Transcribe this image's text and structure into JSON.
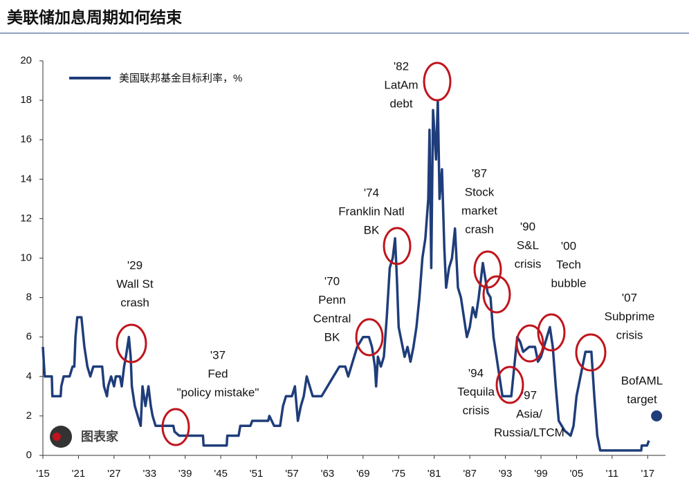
{
  "chart_data": {
    "type": "line",
    "title": "美联储加息周期如何结束",
    "watermark": "图表家",
    "xlim": [
      1915,
      2020
    ],
    "ylim": [
      0,
      20
    ],
    "yticks": [
      0,
      2,
      4,
      6,
      8,
      10,
      12,
      14,
      16,
      18,
      20
    ],
    "xticks": [
      {
        "value": 1915,
        "label": "'15"
      },
      {
        "value": 1921,
        "label": "'21"
      },
      {
        "value": 1927,
        "label": "'27"
      },
      {
        "value": 1933,
        "label": "'33"
      },
      {
        "value": 1939,
        "label": "'39"
      },
      {
        "value": 1945,
        "label": "'45"
      },
      {
        "value": 1951,
        "label": "'51"
      },
      {
        "value": 1957,
        "label": "'57"
      },
      {
        "value": 1963,
        "label": "'63"
      },
      {
        "value": 1969,
        "label": "'69"
      },
      {
        "value": 1975,
        "label": "'75"
      },
      {
        "value": 1981,
        "label": "'81"
      },
      {
        "value": 1987,
        "label": "'87"
      },
      {
        "value": 1993,
        "label": "'93"
      },
      {
        "value": 1999,
        "label": "'99"
      },
      {
        "value": 2005,
        "label": "'05"
      },
      {
        "value": 2011,
        "label": "'11"
      },
      {
        "value": 2017,
        "label": "'17"
      }
    ],
    "legend": "upper left",
    "series": [
      {
        "name": "美国联邦基金目标利率，%",
        "color": "#1f3d7a",
        "x": [
          1915,
          1915.3,
          1916.5,
          1916.6,
          1918,
          1918.1,
          1918.5,
          1919.5,
          1920,
          1920.3,
          1920.5,
          1920.8,
          1921.5,
          1922,
          1922.5,
          1923,
          1923.5,
          1925,
          1925.3,
          1925.8,
          1926,
          1926.5,
          1927,
          1927.3,
          1928,
          1928.3,
          1928.7,
          1929,
          1929.5,
          1929.8,
          1930,
          1930.5,
          1931,
          1931.5,
          1931.8,
          1932.3,
          1932.8,
          1933.2,
          1933.5,
          1934,
          1937,
          1937.2,
          1938,
          1942,
          1942.1,
          1946,
          1946.1,
          1948,
          1948.3,
          1950,
          1950.3,
          1953,
          1953.2,
          1954,
          1955,
          1955.5,
          1956,
          1957,
          1957.5,
          1958,
          1958.5,
          1959,
          1959.5,
          1960,
          1960.5,
          1962,
          1963,
          1964,
          1965,
          1966,
          1966.5,
          1967,
          1968,
          1969,
          1970,
          1970.5,
          1971,
          1971.2,
          1971.5,
          1972,
          1972.5,
          1973,
          1973.5,
          1974,
          1974.4,
          1974.7,
          1975,
          1976,
          1976.5,
          1977,
          1977.5,
          1978,
          1978.5,
          1979,
          1979.5,
          1980,
          1980.2,
          1980.5,
          1980.8,
          1981.3,
          1981.6,
          1981.9,
          1982.3,
          1982.7,
          1983,
          1983.5,
          1984,
          1984.5,
          1985,
          1985.5,
          1986,
          1986.5,
          1987,
          1987.5,
          1988,
          1988.5,
          1989.2,
          1989.6,
          1990,
          1990.5,
          1991,
          1991.5,
          1992,
          1992.5,
          1993,
          1994,
          1994.5,
          1995,
          1995.5,
          1996,
          1997,
          1998,
          1998.5,
          1999,
          1999.5,
          2000,
          2000.5,
          2001,
          2001.5,
          2002,
          2003,
          2004,
          2004.5,
          2005,
          2006,
          2006.5,
          2007.5,
          2008,
          2008.5,
          2009,
          2015.9,
          2016,
          2016.9,
          2017.2
        ],
        "values": [
          5.5,
          4,
          4,
          3,
          3,
          3.5,
          4,
          4,
          4.5,
          4.5,
          6,
          7,
          7,
          5.5,
          4.5,
          4,
          4.5,
          4.5,
          3.5,
          3,
          3.5,
          4,
          3.5,
          4,
          4,
          3.5,
          4.5,
          5,
          6,
          5,
          3.5,
          2.5,
          2,
          1.5,
          3.5,
          2.5,
          3.5,
          2.5,
          2,
          1.5,
          1.5,
          1.2,
          1,
          1,
          0.5,
          0.5,
          1,
          1,
          1.5,
          1.5,
          1.75,
          1.75,
          2,
          1.5,
          1.5,
          2.5,
          3,
          3,
          3.5,
          1.75,
          2.5,
          3,
          4,
          3.5,
          3,
          3,
          3.5,
          4,
          4.5,
          4.5,
          4,
          4.5,
          5.5,
          6,
          6,
          5.5,
          4.5,
          3.5,
          5,
          4.5,
          5,
          7,
          9.5,
          10,
          11,
          9,
          6.5,
          5,
          5.5,
          4.75,
          5.5,
          6.5,
          8,
          10,
          11,
          13,
          16.5,
          9.5,
          17.5,
          15,
          18,
          13,
          14.5,
          10.5,
          8.5,
          9.5,
          10,
          11.5,
          8.5,
          8,
          7,
          6,
          6.5,
          7.5,
          7,
          8,
          9.75,
          9,
          8.25,
          8,
          6,
          5,
          4,
          3,
          3,
          3,
          4.5,
          6,
          5.75,
          5.25,
          5.5,
          5.5,
          4.75,
          5,
          5.5,
          6,
          6.5,
          5.5,
          3.5,
          1.75,
          1.25,
          1,
          1.5,
          3,
          4.5,
          5.25,
          5.25,
          3,
          1,
          0.25,
          0.25,
          0.5,
          0.5,
          0.75
        ]
      }
    ],
    "target": {
      "x": 2018.5,
      "value": 2,
      "color": "#1f3d7a"
    },
    "annotations": [
      [
        "'29",
        "Wall St",
        "crash"
      ],
      [
        "'37",
        "Fed",
        "\"policy mistake\""
      ],
      [
        "'70",
        "Penn",
        "Central",
        "BK"
      ],
      [
        "'74",
        "Franklin Natl",
        "BK"
      ],
      [
        "'82",
        "LatAm",
        "debt"
      ],
      [
        "'87",
        "Stock",
        "market",
        "crash"
      ],
      [
        "'90",
        "S&L",
        "crisis"
      ],
      [
        "'00",
        "Tech",
        "bubble"
      ],
      [
        "'07",
        "Subprime",
        "crisis"
      ],
      [
        "'94",
        "Tequila",
        "crisis"
      ],
      [
        "'97",
        "Asia/",
        "Russia/LTCM"
      ],
      [
        "BofAML",
        "target"
      ]
    ],
    "highlight_color": "#c0141c"
  }
}
